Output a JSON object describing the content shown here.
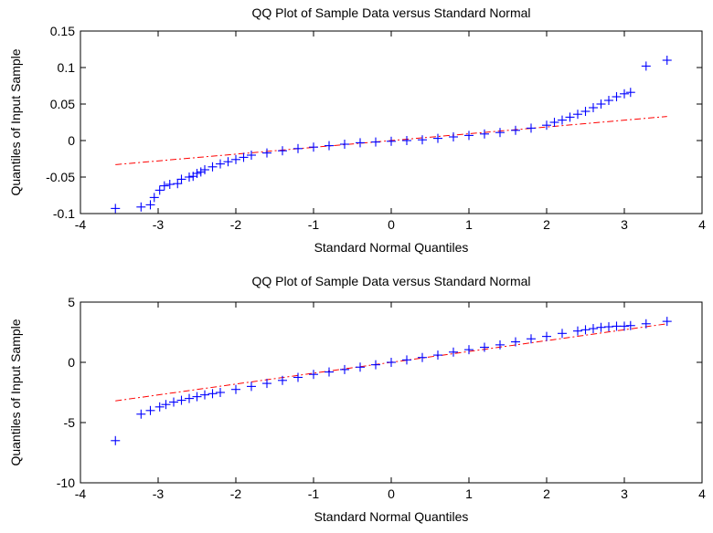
{
  "chart_data": [
    {
      "type": "scatter",
      "title": "QQ Plot of Sample Data versus Standard Normal",
      "xlabel": "Standard Normal Quantiles",
      "ylabel": "Quantiles of Input Sample",
      "xlim": [
        -4,
        4
      ],
      "ylim": [
        -0.1,
        0.15
      ],
      "xticks": [
        "-4",
        "-3",
        "-2",
        "-1",
        "0",
        "1",
        "2",
        "3",
        "4"
      ],
      "yticks": [
        "-0.1",
        "-0.05",
        "0",
        "0.05",
        "0.1",
        "0.15"
      ],
      "grid": false,
      "marker_color": "#0000ff",
      "reference_line_color": "#ff0000",
      "series": [
        {
          "marker": "+",
          "x": [
            -3.55,
            -3.22,
            -3.1,
            -3.05,
            -2.98,
            -2.92,
            -2.85,
            -2.75,
            -2.7,
            -2.6,
            -2.55,
            -2.5,
            -2.45,
            -2.4,
            -2.3,
            -2.2,
            -2.1,
            -2.0,
            -1.9,
            -1.8,
            -1.6,
            -1.4,
            -1.2,
            -1.0,
            -0.8,
            -0.6,
            -0.4,
            -0.2,
            0.0,
            0.2,
            0.4,
            0.6,
            0.8,
            1.0,
            1.2,
            1.4,
            1.6,
            1.8,
            2.0,
            2.1,
            2.2,
            2.3,
            2.4,
            2.5,
            2.6,
            2.7,
            2.8,
            2.9,
            3.0,
            3.08,
            3.28,
            3.55
          ],
          "y": [
            -0.093,
            -0.091,
            -0.088,
            -0.078,
            -0.068,
            -0.062,
            -0.06,
            -0.059,
            -0.053,
            -0.05,
            -0.049,
            -0.045,
            -0.043,
            -0.04,
            -0.036,
            -0.032,
            -0.029,
            -0.026,
            -0.023,
            -0.02,
            -0.017,
            -0.014,
            -0.011,
            -0.009,
            -0.007,
            -0.005,
            -0.003,
            -0.002,
            -0.001,
            0.0,
            0.001,
            0.003,
            0.005,
            0.007,
            0.009,
            0.011,
            0.014,
            0.017,
            0.021,
            0.025,
            0.028,
            0.032,
            0.036,
            0.04,
            0.045,
            0.05,
            0.055,
            0.06,
            0.064,
            0.066,
            0.102,
            0.11
          ]
        }
      ],
      "reference_line": {
        "x": [
          -3.55,
          3.55
        ],
        "y": [
          -0.033,
          0.033
        ]
      }
    },
    {
      "type": "scatter",
      "title": "QQ Plot of Sample Data versus Standard Normal",
      "xlabel": "Standard Normal Quantiles",
      "ylabel": "Quantiles of Input Sample",
      "xlim": [
        -4,
        4
      ],
      "ylim": [
        -10,
        5
      ],
      "xticks": [
        "-4",
        "-3",
        "-2",
        "-1",
        "0",
        "1",
        "2",
        "3",
        "4"
      ],
      "yticks": [
        "-10",
        "-5",
        "0",
        "5"
      ],
      "grid": false,
      "marker_color": "#0000ff",
      "reference_line_color": "#ff0000",
      "series": [
        {
          "marker": "+",
          "x": [
            -3.55,
            -3.22,
            -3.1,
            -2.98,
            -2.9,
            -2.8,
            -2.7,
            -2.6,
            -2.5,
            -2.4,
            -2.3,
            -2.2,
            -2.0,
            -1.8,
            -1.6,
            -1.4,
            -1.2,
            -1.0,
            -0.8,
            -0.6,
            -0.4,
            -0.2,
            0.0,
            0.2,
            0.4,
            0.6,
            0.8,
            1.0,
            1.2,
            1.4,
            1.6,
            1.8,
            2.0,
            2.2,
            2.4,
            2.5,
            2.6,
            2.7,
            2.8,
            2.9,
            3.0,
            3.08,
            3.28,
            3.55
          ],
          "y": [
            -6.5,
            -4.3,
            -4.0,
            -3.7,
            -3.5,
            -3.3,
            -3.15,
            -3.0,
            -2.85,
            -2.7,
            -2.6,
            -2.5,
            -2.25,
            -2.0,
            -1.75,
            -1.5,
            -1.25,
            -1.0,
            -0.8,
            -0.6,
            -0.4,
            -0.2,
            0.0,
            0.2,
            0.4,
            0.6,
            0.85,
            1.05,
            1.25,
            1.45,
            1.7,
            1.95,
            2.15,
            2.4,
            2.6,
            2.7,
            2.8,
            2.9,
            2.95,
            3.0,
            3.0,
            3.05,
            3.2,
            3.4
          ]
        }
      ],
      "reference_line": {
        "x": [
          -3.55,
          3.55
        ],
        "y": [
          -3.2,
          3.2
        ]
      }
    }
  ]
}
